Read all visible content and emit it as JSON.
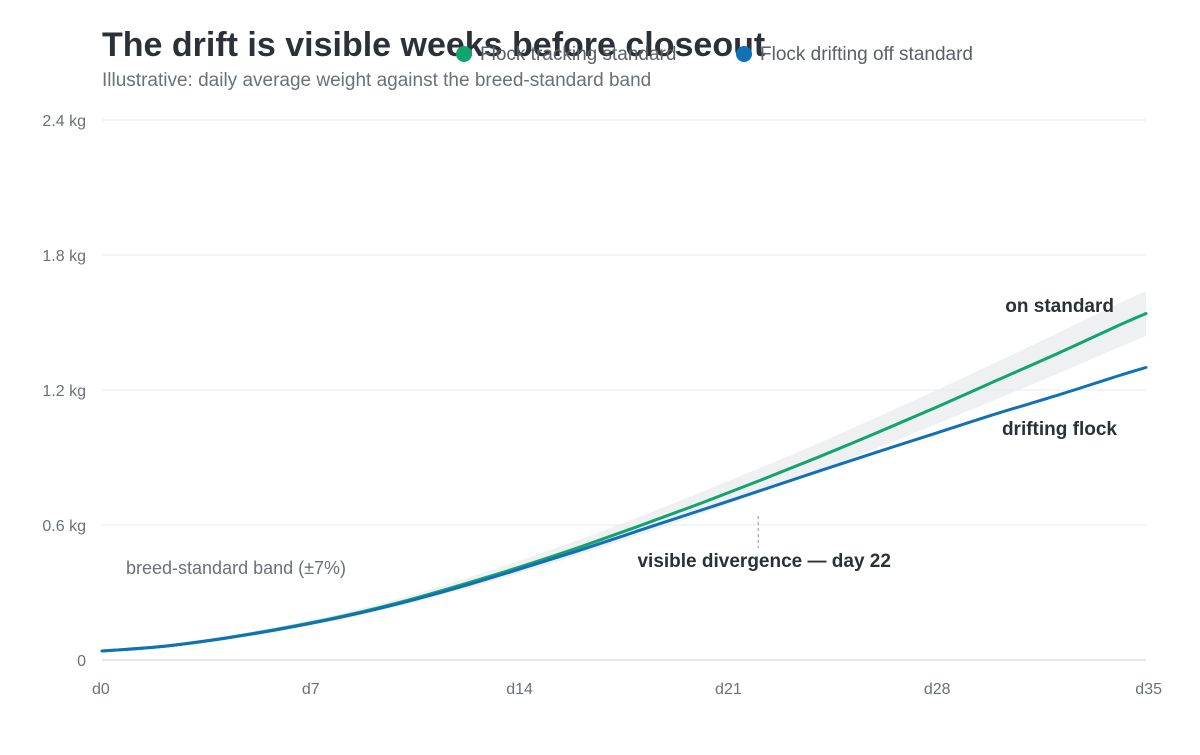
{
  "chart_data": {
    "type": "line",
    "title": "The drift is visible weeks before closeout",
    "subtitle": "Illustrative: daily average weight against the breed-standard band",
    "xlabel": "",
    "ylabel": "",
    "x": [
      0,
      2,
      4,
      6,
      8,
      10,
      12,
      14,
      16,
      18,
      20,
      22,
      24,
      26,
      28,
      30,
      32,
      34,
      35
    ],
    "x_ticks": [
      {
        "value": 0,
        "label": "d0"
      },
      {
        "value": 7,
        "label": "d7"
      },
      {
        "value": 14,
        "label": "d14"
      },
      {
        "value": 21,
        "label": "d21"
      },
      {
        "value": 28,
        "label": "d28"
      },
      {
        "value": 35,
        "label": "d35"
      }
    ],
    "y_ticks": [
      {
        "value": 0,
        "label": "0"
      },
      {
        "value": 0.6,
        "label": "0.6 kg"
      },
      {
        "value": 1.2,
        "label": "1.2 kg"
      },
      {
        "value": 1.8,
        "label": "1.8 kg"
      },
      {
        "value": 2.4,
        "label": "2.4 kg"
      }
    ],
    "xlim": [
      0,
      35
    ],
    "ylim": [
      0,
      2.4
    ],
    "grid": true,
    "legend_position": "top",
    "band": {
      "label": "breed-standard band (±7%)",
      "color": "#eef0f1",
      "lower": [
        0.037,
        0.056,
        0.088,
        0.13,
        0.18,
        0.24,
        0.31,
        0.385,
        0.468,
        0.555,
        0.645,
        0.74,
        0.84,
        0.942,
        1.05,
        1.16,
        1.27,
        1.385,
        1.44
      ],
      "upper": [
        0.043,
        0.065,
        0.102,
        0.15,
        0.206,
        0.274,
        0.354,
        0.441,
        0.534,
        0.635,
        0.741,
        0.85,
        0.962,
        1.08,
        1.2,
        1.325,
        1.45,
        1.58,
        1.64
      ]
    },
    "series": [
      {
        "name": "Flock tracking standard",
        "end_label": "on standard",
        "color": "#12a36e",
        "values": [
          0.04,
          0.06,
          0.095,
          0.14,
          0.193,
          0.257,
          0.332,
          0.413,
          0.501,
          0.595,
          0.693,
          0.795,
          0.901,
          1.011,
          1.125,
          1.243,
          1.36,
          1.482,
          1.54
        ]
      },
      {
        "name": "Flock drifting off standard",
        "end_label": "drifting flock",
        "color": "#1170b6",
        "values": [
          0.04,
          0.06,
          0.094,
          0.138,
          0.19,
          0.252,
          0.324,
          0.404,
          0.487,
          0.575,
          0.662,
          0.75,
          0.838,
          0.925,
          1.01,
          1.095,
          1.175,
          1.26,
          1.3
        ]
      }
    ],
    "annotations": [
      {
        "text": "visible divergence — day 22",
        "x": 22
      }
    ]
  }
}
